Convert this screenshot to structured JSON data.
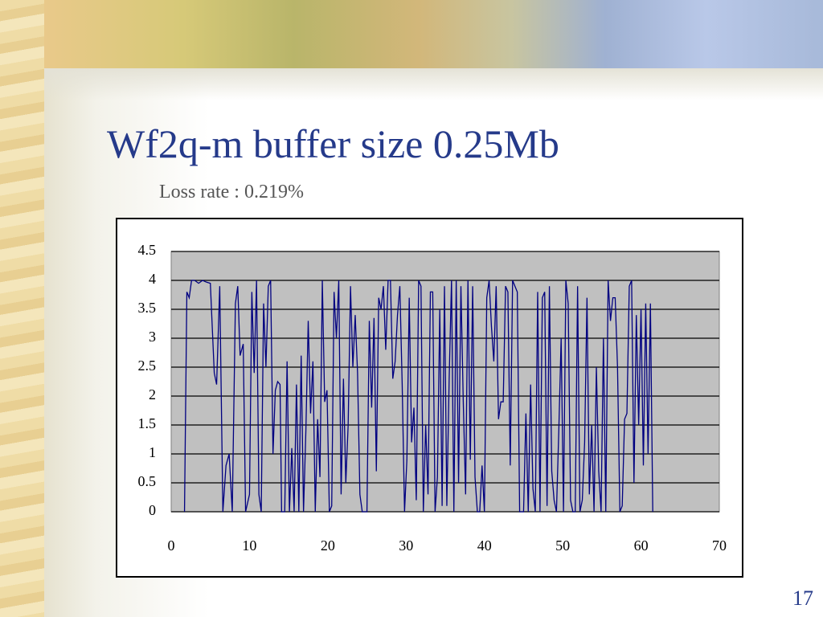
{
  "chart_data": {
    "type": "line",
    "title": "Wf2q-m buffer size 0.25Mb",
    "subtitle": "Loss rate : 0.219%",
    "x": [
      1.7,
      2.0,
      2.3,
      2.6,
      3.0,
      3.5,
      4.0,
      4.5,
      5.0,
      5.5,
      5.8,
      6.2,
      6.6,
      7.0,
      7.4,
      7.8,
      8.2,
      8.5,
      8.8,
      9.2,
      9.5,
      10.0,
      10.3,
      10.6,
      10.9,
      11.2,
      11.5,
      11.8,
      12.1,
      12.4,
      12.7,
      13.0,
      13.3,
      13.6,
      13.9,
      14.1,
      14.5,
      14.8,
      15.1,
      15.4,
      15.7,
      16.0,
      16.3,
      16.6,
      16.9,
      17.2,
      17.5,
      17.8,
      18.1,
      18.4,
      18.7,
      19.0,
      19.3,
      19.6,
      19.9,
      20.2,
      20.5,
      20.8,
      21.1,
      21.4,
      21.7,
      22.0,
      22.3,
      22.6,
      22.9,
      23.2,
      23.5,
      23.8,
      24.1,
      24.4,
      25.0,
      25.3,
      25.6,
      25.9,
      26.2,
      26.5,
      26.8,
      27.1,
      27.4,
      27.7,
      28.0,
      28.3,
      28.6,
      28.9,
      29.2,
      29.5,
      29.8,
      30.1,
      30.4,
      30.7,
      31.0,
      31.3,
      31.6,
      31.9,
      32.2,
      32.5,
      32.8,
      33.1,
      33.4,
      33.7,
      34.0,
      34.3,
      34.6,
      34.9,
      35.2,
      35.5,
      35.8,
      36.1,
      36.4,
      36.7,
      37.0,
      37.3,
      37.6,
      37.9,
      38.2,
      38.5,
      38.8,
      39.1,
      39.4,
      39.7,
      40.0,
      40.3,
      40.6,
      40.9,
      41.2,
      41.5,
      41.8,
      42.1,
      42.4,
      42.7,
      43.0,
      43.3,
      43.6,
      43.9,
      44.2,
      44.5,
      45.0,
      45.3,
      45.6,
      45.9,
      46.2,
      46.5,
      46.8,
      47.1,
      47.4,
      47.7,
      48.0,
      48.3,
      48.6,
      48.9,
      49.2,
      49.5,
      49.8,
      50.1,
      50.4,
      50.7,
      51.0,
      51.3,
      51.6,
      51.9,
      52.2,
      52.5,
      52.8,
      53.1,
      53.4,
      53.7,
      54.0,
      54.3,
      54.6,
      54.9,
      55.2,
      55.5,
      55.8,
      56.1,
      56.4,
      56.7,
      57.0,
      57.3,
      57.6,
      57.9,
      58.2,
      58.5,
      58.8,
      59.1,
      59.4,
      59.7,
      60.0,
      60.3,
      60.6,
      60.9,
      61.2,
      61.5
    ],
    "values": [
      0,
      3.8,
      3.7,
      4.0,
      4.0,
      3.95,
      4.0,
      3.97,
      3.95,
      2.4,
      2.2,
      3.9,
      0,
      0.8,
      1.0,
      0,
      3.6,
      3.9,
      2.7,
      2.9,
      0,
      0.3,
      3.8,
      2.4,
      4.0,
      0.3,
      0,
      3.6,
      2.5,
      3.9,
      4.0,
      1.0,
      2.1,
      2.25,
      2.2,
      0,
      0,
      2.6,
      0,
      1.1,
      0,
      2.2,
      0,
      2.7,
      0,
      1.4,
      3.3,
      1.7,
      2.6,
      0,
      1.6,
      0.6,
      4.0,
      1.9,
      2.1,
      0,
      0.1,
      3.8,
      3.0,
      4.0,
      0.3,
      2.3,
      0.5,
      1.5,
      3.9,
      2.5,
      3.4,
      2.4,
      0.3,
      0,
      0,
      3.3,
      1.8,
      3.35,
      0.7,
      3.7,
      3.5,
      3.9,
      2.8,
      4.0,
      4.0,
      2.3,
      2.6,
      3.4,
      3.9,
      2.2,
      0,
      0.9,
      3.7,
      1.2,
      1.8,
      0.2,
      4.0,
      3.9,
      0,
      1.5,
      0.3,
      3.8,
      3.8,
      0,
      0.6,
      3.5,
      0.1,
      3.9,
      0.1,
      2.3,
      4.0,
      0,
      4.0,
      0.5,
      3.9,
      1.9,
      0.3,
      4.0,
      0.9,
      3.9,
      0.6,
      0,
      0,
      0.8,
      0,
      3.7,
      4.0,
      3.2,
      2.6,
      3.9,
      1.6,
      1.9,
      1.9,
      3.9,
      3.8,
      0.8,
      4.0,
      3.9,
      3.8,
      0,
      0,
      1.7,
      0,
      2.2,
      0.4,
      0,
      3.8,
      0,
      3.7,
      3.8,
      0.1,
      3.9,
      0.7,
      0.2,
      0,
      1.4,
      3.0,
      0,
      4.0,
      3.6,
      0.2,
      0,
      0,
      3.9,
      0,
      0.2,
      1.2,
      3.7,
      0.3,
      1.5,
      0,
      2.5,
      0.7,
      0,
      3.0,
      0,
      4.0,
      3.3,
      3.7,
      3.7,
      2.5,
      0,
      0.1,
      1.6,
      1.7,
      3.9,
      4.0,
      0.5,
      3.4,
      1.5,
      3.5,
      0.8,
      3.6,
      1.0,
      3.6,
      0
    ],
    "color": "#000080",
    "xlim": [
      0,
      70
    ],
    "xticks": [
      0,
      10,
      20,
      30,
      40,
      50,
      60,
      70
    ],
    "ylim": [
      0,
      4.5
    ],
    "yticks": [
      0,
      0.5,
      1,
      1.5,
      2,
      2.5,
      3,
      3.5,
      4,
      4.5
    ],
    "grid": true
  },
  "page_number": "17"
}
